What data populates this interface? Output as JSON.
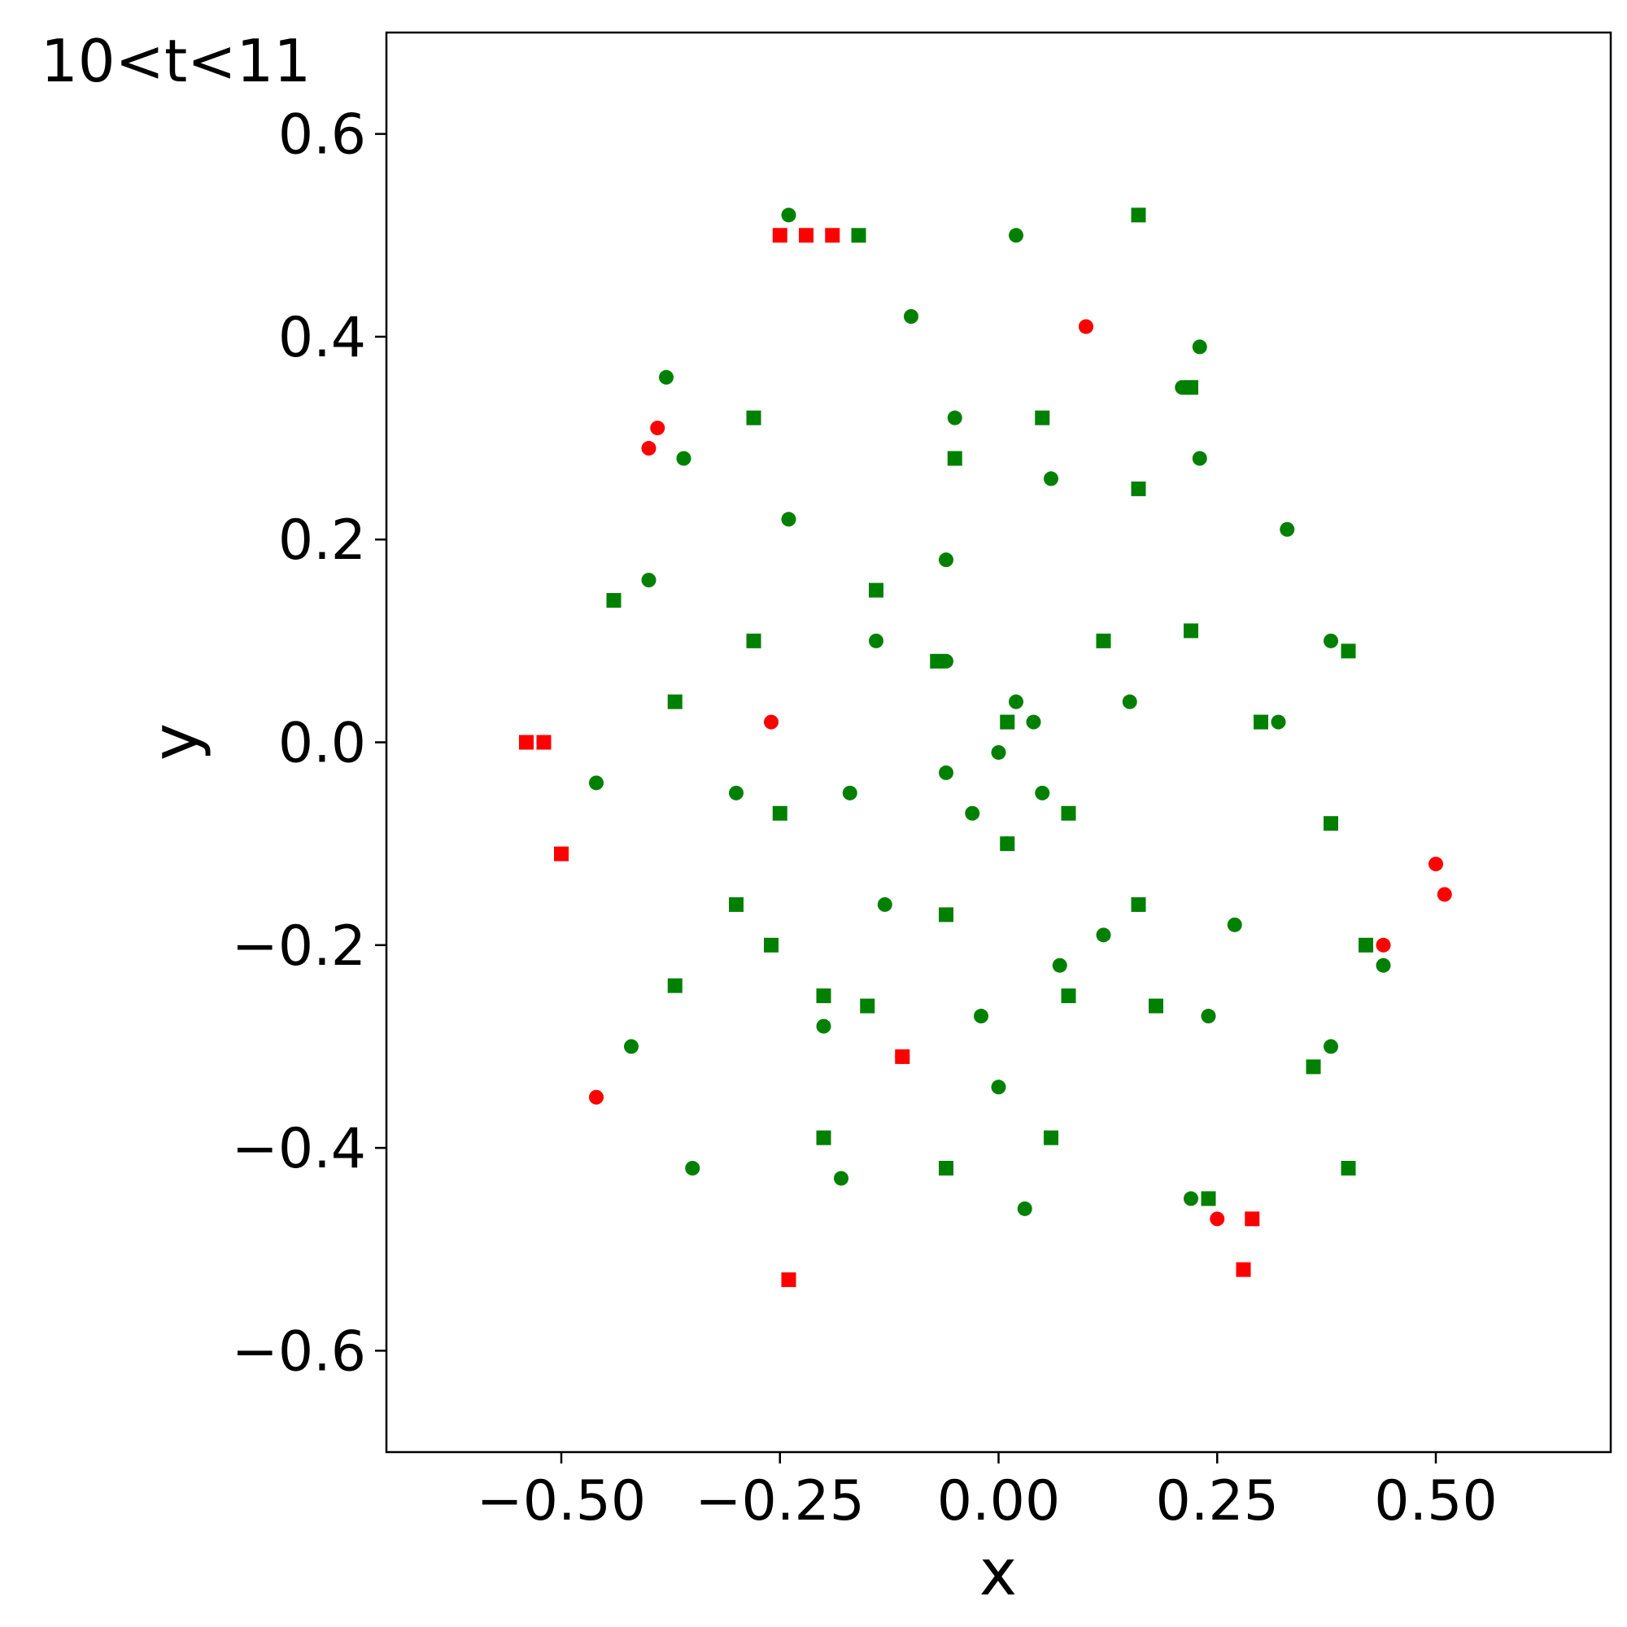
{
  "chart_data": {
    "type": "scatter",
    "title": "10<t<11",
    "xlabel": "x",
    "ylabel": "y",
    "xlim": [
      -0.7,
      0.7
    ],
    "ylim": [
      -0.7,
      0.7
    ],
    "x_ticks": [
      -0.5,
      -0.25,
      0.0,
      0.25,
      0.5
    ],
    "x_tick_labels": [
      "−0.50",
      "−0.25",
      "0.00",
      "0.25",
      "0.50"
    ],
    "y_ticks": [
      -0.6,
      -0.4,
      -0.2,
      0.0,
      0.2,
      0.4,
      0.6
    ],
    "y_tick_labels": [
      "−0.6",
      "−0.4",
      "−0.2",
      "0.0",
      "0.2",
      "0.4",
      "0.6"
    ],
    "grid": false,
    "legend": "none",
    "colors": {
      "green": "#008000",
      "red": "#ff0000"
    },
    "series": [
      {
        "color": "#008000",
        "marker": "circle",
        "points": [
          [
            0.0,
            -0.01
          ],
          [
            0.02,
            0.04
          ],
          [
            0.04,
            0.02
          ],
          [
            0.05,
            -0.05
          ],
          [
            0.01,
            -0.1
          ],
          [
            -0.03,
            -0.07
          ],
          [
            -0.06,
            -0.03
          ],
          [
            -0.06,
            0.08
          ],
          [
            0.15,
            0.04
          ],
          [
            0.16,
            -0.16
          ],
          [
            0.07,
            -0.22
          ],
          [
            -0.13,
            -0.16
          ],
          [
            -0.17,
            -0.05
          ],
          [
            -0.14,
            0.1
          ],
          [
            -0.06,
            0.18
          ],
          [
            0.06,
            0.26
          ],
          [
            0.23,
            0.28
          ],
          [
            0.32,
            0.02
          ],
          [
            0.24,
            -0.27
          ],
          [
            0.0,
            -0.34
          ],
          [
            -0.2,
            -0.28
          ],
          [
            -0.3,
            -0.05
          ],
          [
            -0.24,
            0.22
          ],
          [
            -0.05,
            0.32
          ],
          [
            -0.36,
            0.28
          ],
          [
            -0.4,
            0.16
          ],
          [
            -0.46,
            -0.04
          ],
          [
            -0.42,
            -0.3
          ],
          [
            -0.18,
            -0.43
          ],
          [
            0.03,
            -0.46
          ],
          [
            0.22,
            -0.45
          ],
          [
            0.38,
            -0.3
          ],
          [
            0.44,
            -0.22
          ],
          [
            0.38,
            0.1
          ],
          [
            0.21,
            0.35
          ],
          [
            -0.1,
            0.42
          ],
          [
            0.1,
            0.41
          ],
          [
            0.27,
            -0.18
          ],
          [
            0.33,
            0.21
          ],
          [
            -0.35,
            -0.42
          ],
          [
            0.12,
            -0.19
          ],
          [
            -0.02,
            -0.27
          ],
          [
            0.23,
            0.39
          ],
          [
            -0.24,
            0.52
          ],
          [
            0.02,
            0.5
          ],
          [
            -0.38,
            0.36
          ]
        ]
      },
      {
        "color": "#008000",
        "marker": "square",
        "points": [
          [
            -0.07,
            0.08
          ],
          [
            0.01,
            0.02
          ],
          [
            0.08,
            -0.07
          ],
          [
            0.01,
            -0.1
          ],
          [
            -0.06,
            -0.17
          ],
          [
            0.16,
            -0.16
          ],
          [
            0.12,
            0.1
          ],
          [
            -0.14,
            0.15
          ],
          [
            0.05,
            0.32
          ],
          [
            -0.05,
            0.28
          ],
          [
            0.16,
            0.25
          ],
          [
            0.22,
            0.35
          ],
          [
            -0.28,
            0.1
          ],
          [
            -0.26,
            -0.2
          ],
          [
            -0.2,
            -0.25
          ],
          [
            -0.25,
            -0.07
          ],
          [
            -0.15,
            -0.26
          ],
          [
            0.08,
            -0.25
          ],
          [
            0.18,
            -0.26
          ],
          [
            0.38,
            -0.08
          ],
          [
            0.3,
            0.02
          ],
          [
            0.22,
            0.11
          ],
          [
            0.4,
            0.09
          ],
          [
            -0.28,
            0.32
          ],
          [
            -0.44,
            0.14
          ],
          [
            -0.37,
            0.04
          ],
          [
            -0.37,
            -0.24
          ],
          [
            -0.2,
            -0.39
          ],
          [
            -0.06,
            -0.42
          ],
          [
            0.06,
            -0.39
          ],
          [
            0.24,
            -0.45
          ],
          [
            0.4,
            -0.42
          ],
          [
            0.42,
            -0.2
          ],
          [
            0.16,
            0.52
          ],
          [
            -0.3,
            -0.16
          ],
          [
            0.36,
            -0.32
          ],
          [
            -0.16,
            0.5
          ]
        ]
      },
      {
        "color": "#ff0000",
        "marker": "circle",
        "points": [
          [
            -0.26,
            0.02
          ],
          [
            -0.11,
            -0.31
          ],
          [
            0.1,
            0.41
          ],
          [
            -0.39,
            0.31
          ],
          [
            -0.4,
            0.29
          ],
          [
            0.44,
            -0.2
          ],
          [
            0.5,
            -0.12
          ],
          [
            -0.46,
            -0.35
          ],
          [
            0.25,
            -0.47
          ],
          [
            0.51,
            -0.15
          ]
        ]
      },
      {
        "color": "#ff0000",
        "marker": "square",
        "points": [
          [
            -0.11,
            -0.31
          ],
          [
            -0.25,
            0.5
          ],
          [
            -0.22,
            0.5
          ],
          [
            -0.19,
            0.5
          ],
          [
            -0.5,
            -0.11
          ],
          [
            -0.52,
            0.0
          ],
          [
            -0.54,
            0.0
          ],
          [
            0.29,
            -0.47
          ],
          [
            0.28,
            -0.52
          ],
          [
            -0.24,
            -0.53
          ]
        ]
      }
    ]
  }
}
